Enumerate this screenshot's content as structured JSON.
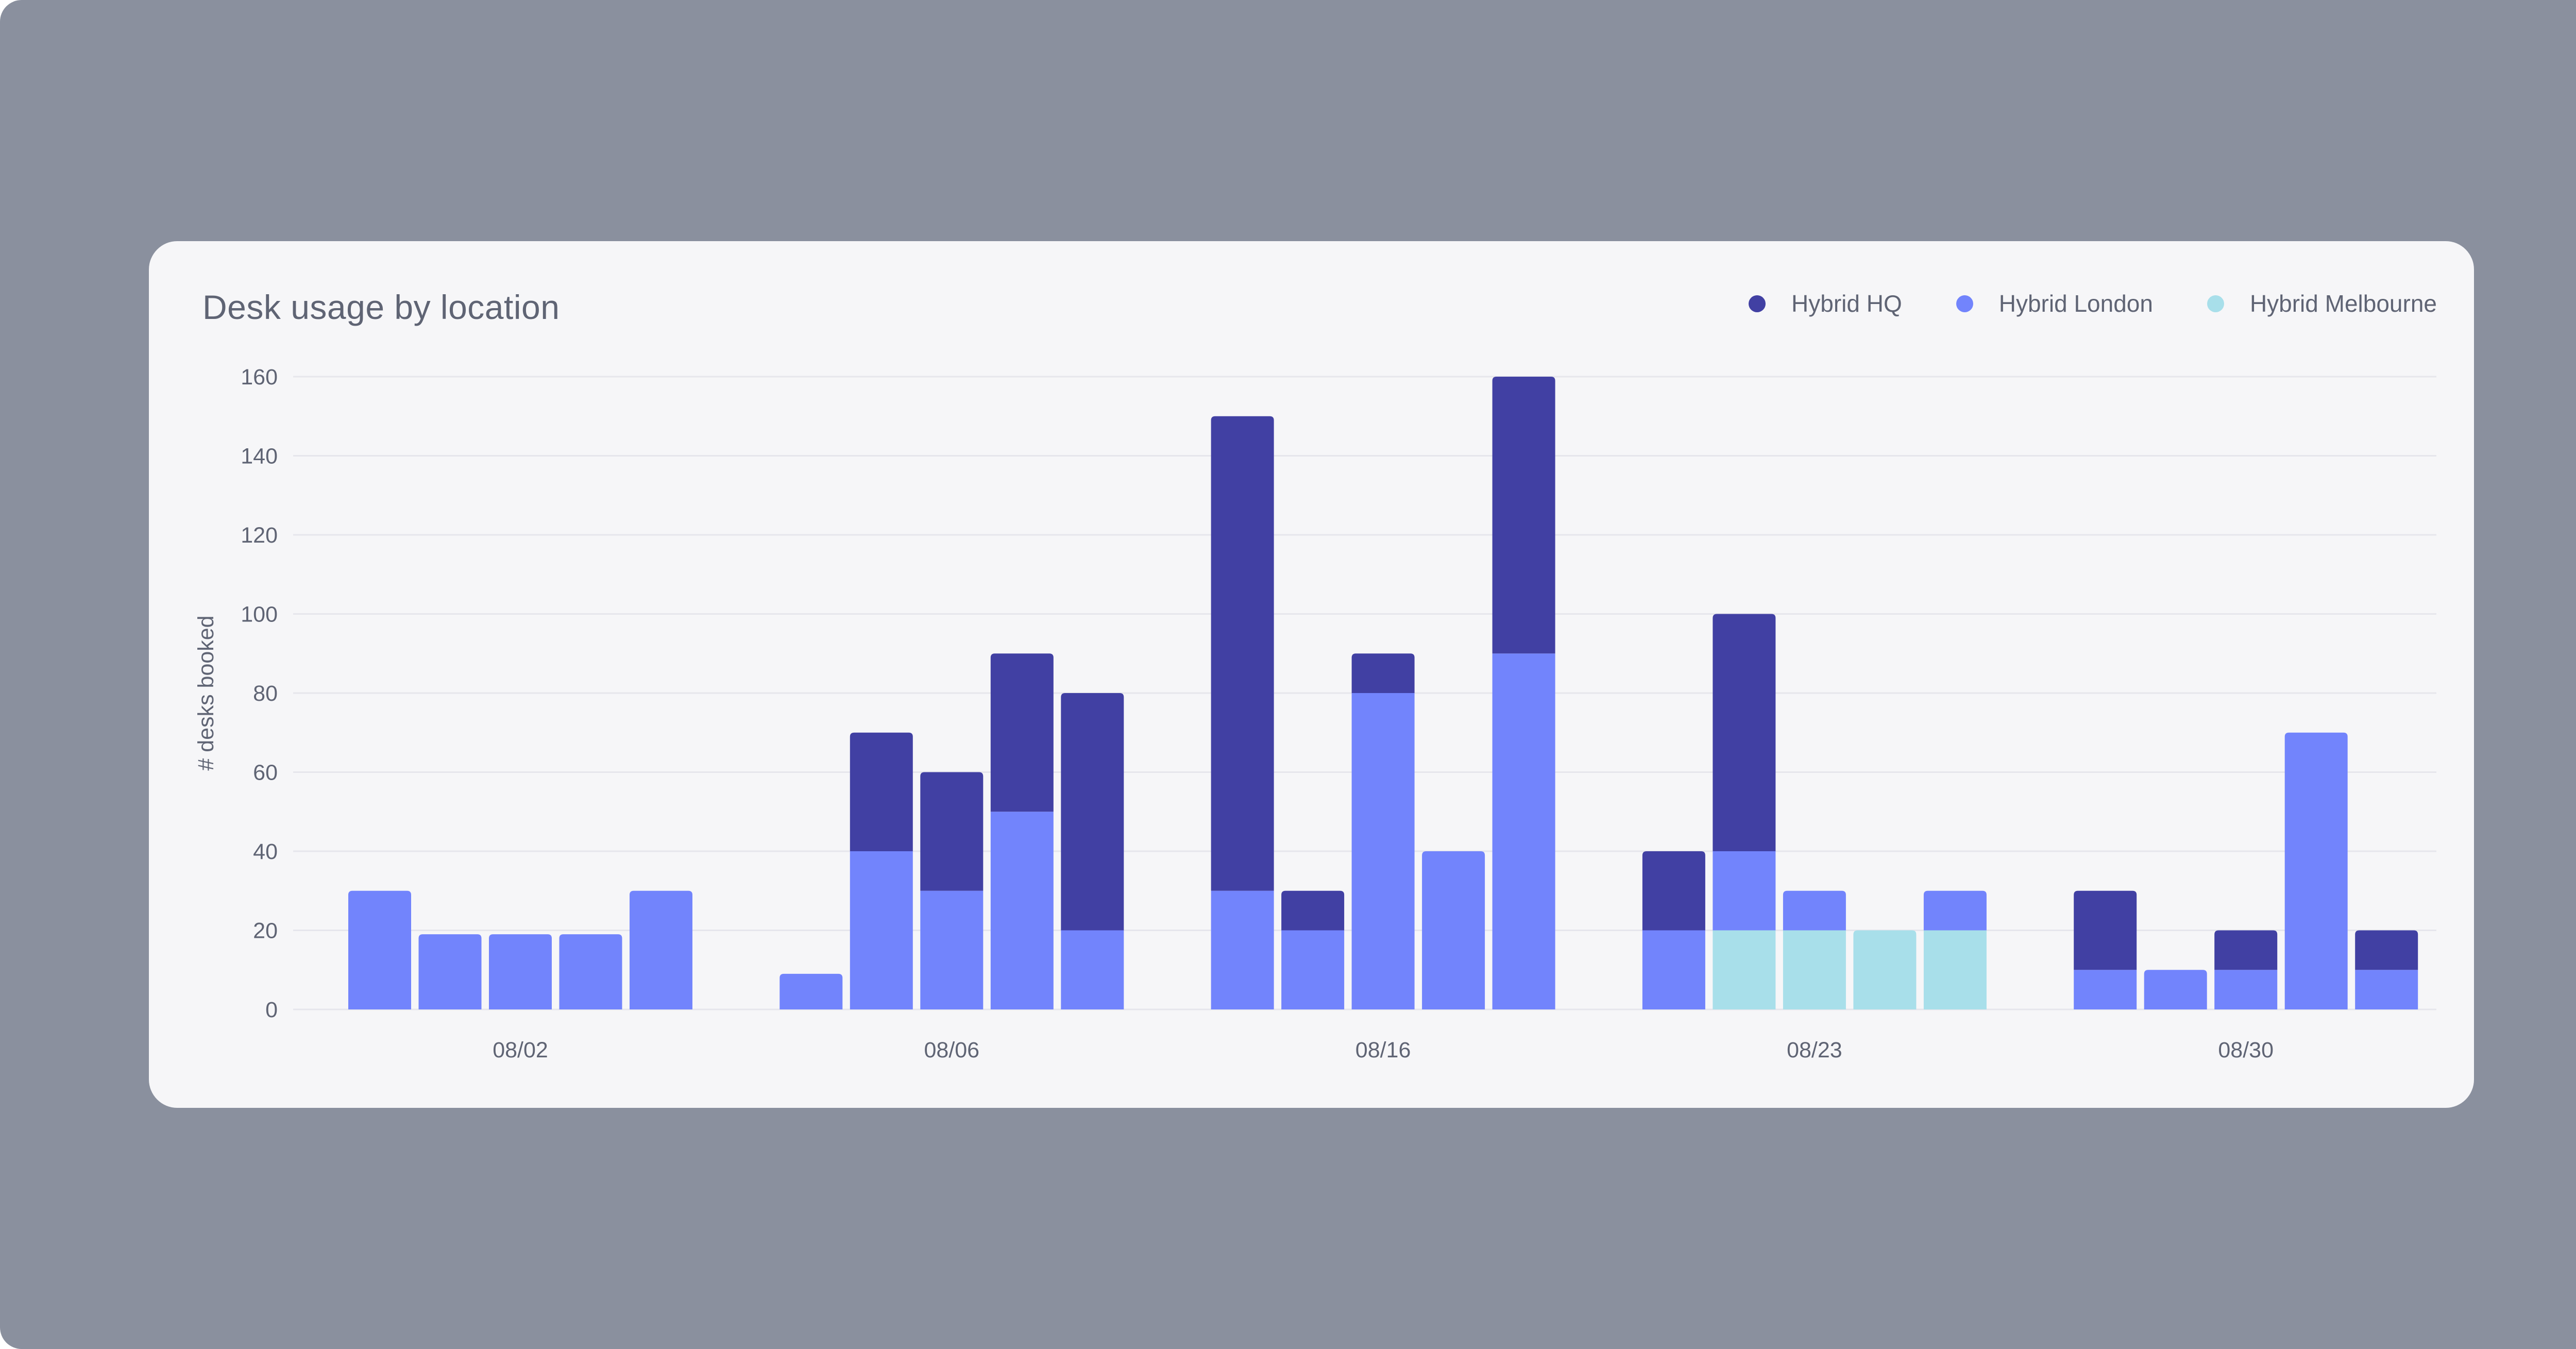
{
  "chart_data": {
    "type": "bar",
    "stacked": true,
    "title": "Desk usage by location",
    "ylabel": "# desks booked",
    "xlabel": "",
    "ylim": [
      0,
      160
    ],
    "yticks": [
      "0",
      "20",
      "40",
      "60",
      "80",
      "100",
      "120",
      "140",
      "160"
    ],
    "grid": true,
    "legend_position": "top-right",
    "group_labels": [
      "08/02",
      "08/06",
      "08/16",
      "08/23",
      "08/30"
    ],
    "series": [
      {
        "name": "Hybrid Melbourne",
        "color": "#a8dfea",
        "values": [
          [
            0,
            0,
            0,
            0,
            0
          ],
          [
            0,
            0,
            0,
            0,
            0
          ],
          [
            0,
            0,
            0,
            0,
            0
          ],
          [
            0,
            20,
            20,
            20,
            20
          ],
          [
            0,
            0,
            0,
            0,
            0
          ]
        ]
      },
      {
        "name": "Hybrid London",
        "color": "#7284fc",
        "values": [
          [
            30,
            19,
            19,
            19,
            30
          ],
          [
            9,
            40,
            30,
            50,
            20
          ],
          [
            30,
            20,
            80,
            40,
            90
          ],
          [
            20,
            20,
            10,
            0,
            10
          ],
          [
            10,
            10,
            10,
            70,
            10
          ]
        ]
      },
      {
        "name": "Hybrid HQ",
        "color": "#4140a3",
        "values": [
          [
            0,
            0,
            0,
            0,
            0
          ],
          [
            0,
            30,
            30,
            40,
            60
          ],
          [
            120,
            10,
            10,
            0,
            70
          ],
          [
            20,
            60,
            0,
            0,
            0
          ],
          [
            20,
            0,
            10,
            0,
            10
          ]
        ]
      }
    ],
    "legend_order": [
      "Hybrid HQ",
      "Hybrid London",
      "Hybrid Melbourne"
    ]
  }
}
